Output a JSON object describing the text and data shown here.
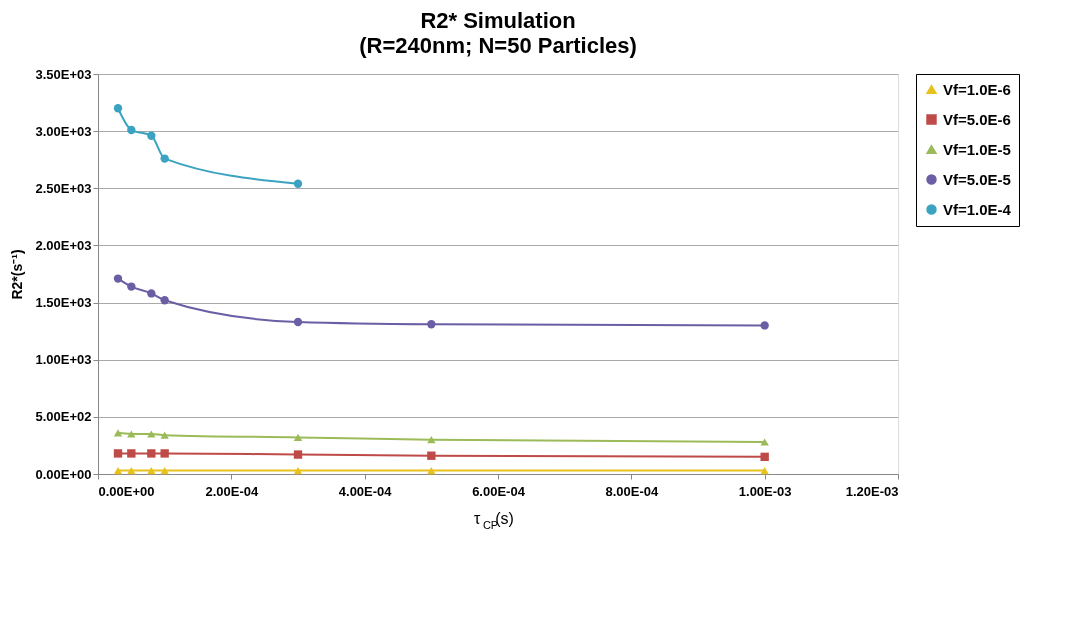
{
  "chart_data": {
    "type": "line",
    "title": "R2* Simulation",
    "subtitle": "(R=240nm; N=50 Particles)",
    "xlabel": "τ$_{CP}$(s)",
    "ylabel": "R2*(s⁻¹)",
    "x": [
      3e-05,
      5e-05,
      8e-05,
      0.0001,
      0.0003,
      0.0005,
      0.001
    ],
    "series": [
      {
        "name": "Vf=1.0E-6",
        "color": "#e8c21c",
        "marker": "triangle",
        "values": [
          30,
          30,
          30,
          30,
          30,
          30,
          30
        ]
      },
      {
        "name": "Vf=5.0E-6",
        "color": "#be4b48",
        "marker": "square",
        "values": [
          180,
          180,
          180,
          180,
          170,
          160,
          150
        ]
      },
      {
        "name": "Vf=1.0E-5",
        "color": "#9bbb59",
        "marker": "triangle",
        "values": [
          360,
          350,
          350,
          340,
          320,
          300,
          280
        ]
      },
      {
        "name": "Vf=5.0E-5",
        "color": "#6b5ea5",
        "marker": "circle",
        "values": [
          1710,
          1640,
          1580,
          1520,
          1330,
          1310,
          1300
        ]
      },
      {
        "name": "Vf=1.0E-4",
        "color": "#3ba3c1",
        "marker": "circle",
        "values": [
          3200,
          3010,
          2960,
          2760,
          2540,
          null,
          null
        ]
      }
    ],
    "xlim": [
      0,
      0.0012
    ],
    "xticks": [
      {
        "value": 0,
        "label": "0.00E+00"
      },
      {
        "value": 0.0002,
        "label": "2.00E-04"
      },
      {
        "value": 0.0004,
        "label": "4.00E-04"
      },
      {
        "value": 0.0006,
        "label": "6.00E-04"
      },
      {
        "value": 0.0008,
        "label": "8.00E-04"
      },
      {
        "value": 0.001,
        "label": "1.00E-03"
      },
      {
        "value": 0.0012,
        "label": "1.20E-03"
      }
    ],
    "ylim": [
      0,
      3500
    ],
    "yticks": [
      {
        "value": 0,
        "label": "0.00E+00"
      },
      {
        "value": 500,
        "label": "5.00E+02"
      },
      {
        "value": 1000,
        "label": "1.00E+03"
      },
      {
        "value": 1500,
        "label": "1.50E+03"
      },
      {
        "value": 2000,
        "label": "2.00E+03"
      },
      {
        "value": 2500,
        "label": "2.50E+03"
      },
      {
        "value": 3000,
        "label": "3.00E+03"
      },
      {
        "value": 3500,
        "label": "3.50E+03"
      }
    ],
    "grid": "y",
    "legend": "right",
    "line_style": "solid"
  }
}
